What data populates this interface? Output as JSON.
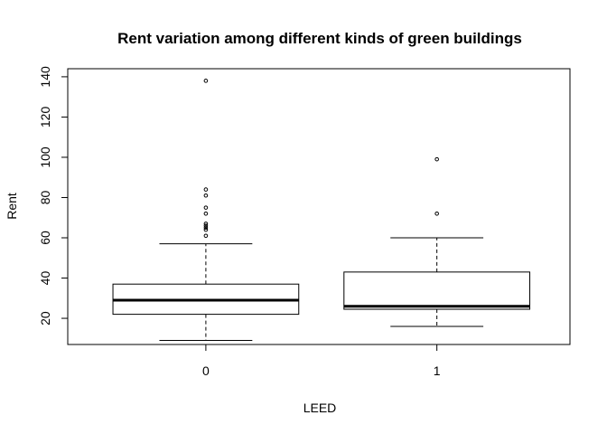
{
  "chart_data": {
    "type": "boxplot",
    "title": "Rent variation among different kinds of green buildings",
    "xlabel": "LEED",
    "ylabel": "Rent",
    "categories": [
      "0",
      "1"
    ],
    "ylim": [
      7,
      144
    ],
    "yticks": [
      20,
      40,
      60,
      80,
      100,
      120,
      140
    ],
    "grid": false,
    "boxes": [
      {
        "category": "0",
        "whisker_low": 9,
        "q1": 22,
        "median": 29,
        "q3": 37,
        "whisker_high": 57,
        "outliers": [
          61,
          64,
          65,
          66,
          67,
          72,
          75,
          81,
          84,
          138
        ]
      },
      {
        "category": "1",
        "whisker_low": 16,
        "q1": 24.5,
        "median": 26,
        "q3": 43,
        "whisker_high": 60,
        "outliers": [
          72,
          99
        ]
      }
    ]
  }
}
